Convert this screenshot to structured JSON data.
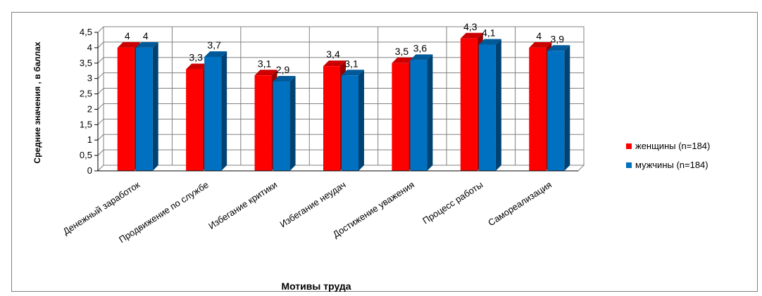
{
  "chart_data": {
    "type": "bar",
    "title": "",
    "xlabel": "Мотивы труда",
    "ylabel": "Средние значения , в баллах",
    "ylim": [
      0,
      4.5
    ],
    "ytick_step": 0.5,
    "ytick_labels": [
      "0",
      "0,5",
      "1",
      "1,5",
      "2",
      "2,5",
      "3",
      "3,5",
      "4",
      "4,5"
    ],
    "grid": true,
    "legend_position": "right",
    "categories": [
      "Денежный заработок",
      "Продвижение по службе",
      "Избегание критики",
      "Избегание неудач",
      "Достижение уважения",
      "Процесс работы",
      "Самореализация"
    ],
    "series": [
      {
        "name": "женщины (n=184)",
        "values": [
          4,
          3.3,
          3.1,
          3.4,
          3.5,
          4.3,
          4
        ],
        "labels": [
          "4",
          "3,3",
          "3,1",
          "3,4",
          "3,5",
          "4,3",
          "4"
        ],
        "color": "#ff0000"
      },
      {
        "name": "мужчины (n=184)",
        "values": [
          4,
          3.7,
          2.9,
          3.1,
          3.6,
          4.1,
          3.9
        ],
        "labels": [
          "4",
          "3,7",
          "2,9",
          "3,1",
          "3,6",
          "4,1",
          "3,9"
        ],
        "color": "#0070c0"
      }
    ]
  },
  "colors": {
    "frame_border": "#808080",
    "grid": "#808080",
    "axis": "#000000"
  }
}
